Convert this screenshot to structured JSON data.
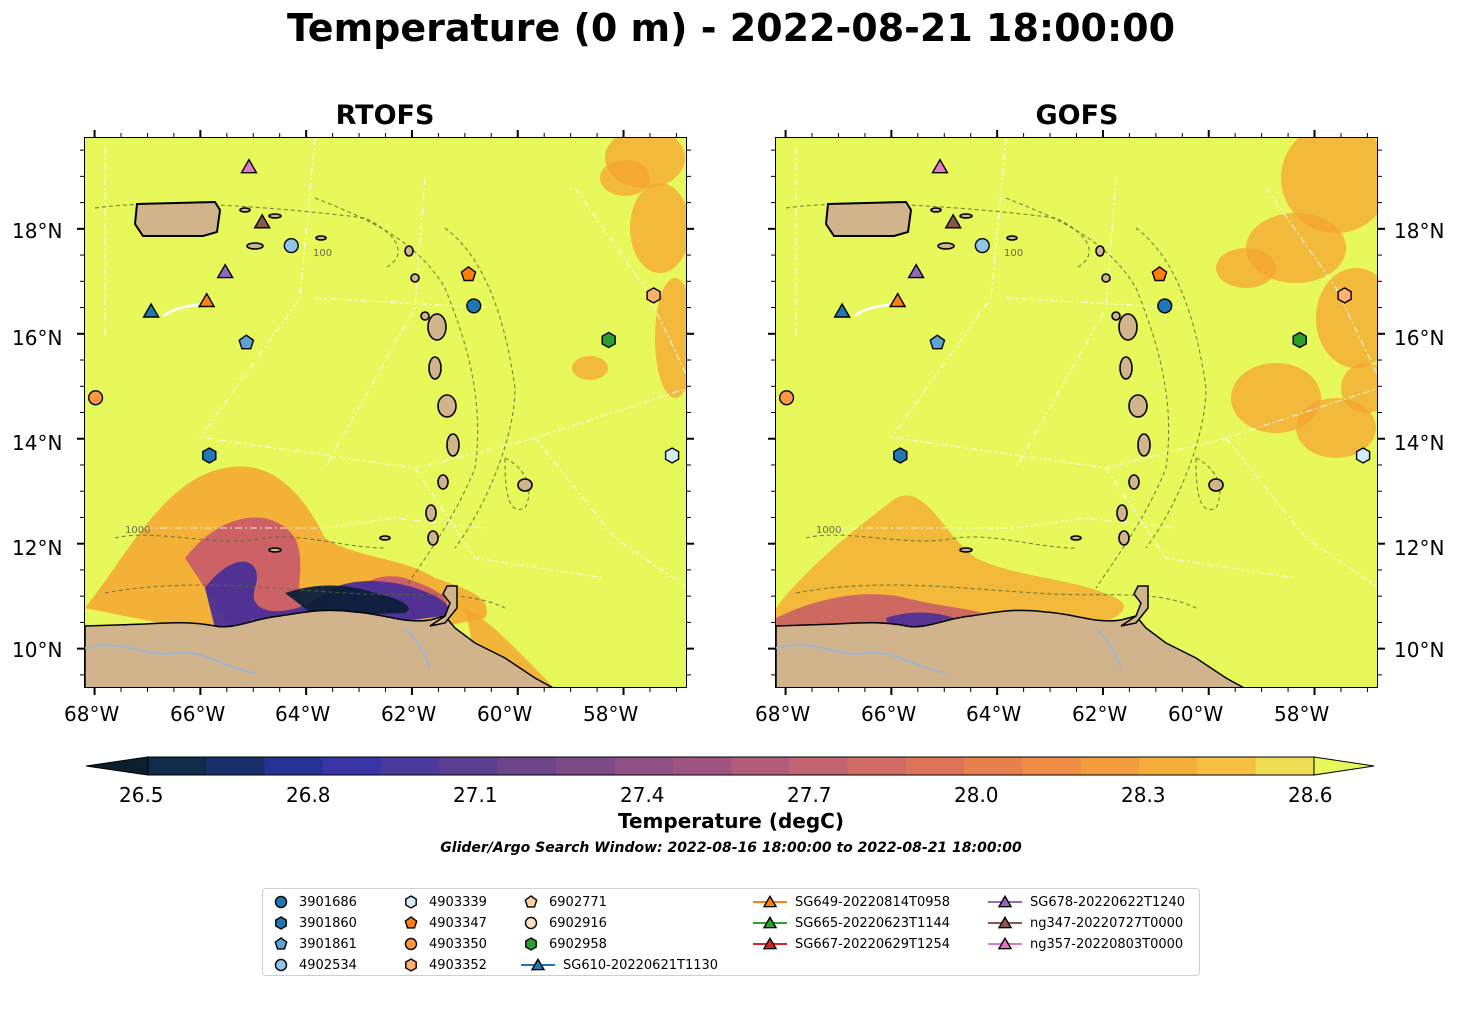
{
  "title": "Temperature (0 m) - 2022-08-21 18:00:00",
  "panels": [
    {
      "title": "RTOFS"
    },
    {
      "title": "GOFS"
    }
  ],
  "axes": {
    "lon_ticks": [
      "68°W",
      "66°W",
      "64°W",
      "62°W",
      "60°W",
      "58°W"
    ],
    "lat_ticks": [
      "18°N",
      "16°N",
      "14°N",
      "12°N",
      "10°N"
    ]
  },
  "bathymetry_labels": [
    "100",
    "1000"
  ],
  "colors": {
    "land": "#d2b48c",
    "warm_water": "#e6f85a",
    "orange": "#f5a431",
    "purple": "#4a2f97",
    "dark": "#0b1f3a",
    "contour": "#556b2f",
    "eez": "#ffffff"
  },
  "colorbar": {
    "ticks": [
      "26.5",
      "26.8",
      "27.1",
      "27.4",
      "27.7",
      "28.0",
      "28.3",
      "28.6"
    ],
    "label": "Temperature (degC)",
    "colormap": "thermal",
    "extend": "both"
  },
  "search_window": "Glider/Argo Search Window: 2022-08-16 18:00:00 to 2022-08-21 18:00:00",
  "legend": {
    "columns": [
      [
        {
          "label": "3901686",
          "marker": "circle",
          "color": "#1f77b4"
        },
        {
          "label": "3901860",
          "marker": "hexagon",
          "color": "#1f77b4"
        },
        {
          "label": "3901861",
          "marker": "pentagon",
          "color": "#5fa2d6"
        },
        {
          "label": "4902534",
          "marker": "circle",
          "color": "#8fc6ea"
        }
      ],
      [
        {
          "label": "4903339",
          "marker": "hexagon",
          "color": "#d6ecfa"
        },
        {
          "label": "4903347",
          "marker": "pentagon",
          "color": "#ff7f0e"
        },
        {
          "label": "4903350",
          "marker": "circle",
          "color": "#ff9640"
        },
        {
          "label": "4903352",
          "marker": "hexagon",
          "color": "#ffb070"
        }
      ],
      [
        {
          "label": "6902771",
          "marker": "pentagon",
          "color": "#ffcf9e"
        },
        {
          "label": "6902916",
          "marker": "circle",
          "color": "#ffe0c0"
        },
        {
          "label": "6902958",
          "marker": "hexagon",
          "color": "#2ca02c"
        },
        {
          "label": "SG610-20220621T1130",
          "marker": "triangle",
          "color": "#1f77b4",
          "line": true
        }
      ],
      [
        {
          "label": "SG649-20220814T0958",
          "marker": "triangle",
          "color": "#ff7f0e",
          "line": true
        },
        {
          "label": "SG665-20220623T1144",
          "marker": "triangle",
          "color": "#2ca02c",
          "line": true
        },
        {
          "label": "SG667-20220629T1254",
          "marker": "triangle",
          "color": "#d62728",
          "line": true
        }
      ],
      [
        {
          "label": "SG678-20220622T1240",
          "marker": "triangle",
          "color": "#9467bd",
          "line": true
        },
        {
          "label": "ng347-20220727T0000",
          "marker": "triangle",
          "color": "#8c564b",
          "line": true
        },
        {
          "label": "ng357-20220803T0000",
          "marker": "triangle",
          "color": "#e377c2",
          "line": true
        }
      ]
    ]
  },
  "platforms": [
    {
      "id": "3901686",
      "marker": "circle",
      "color": "#1f77b4",
      "lon": -60.85,
      "lat": 16.55
    },
    {
      "id": "3901860",
      "marker": "hexagon",
      "color": "#1f77b4",
      "lon": -65.85,
      "lat": 13.7
    },
    {
      "id": "3901861",
      "marker": "pentagon",
      "color": "#5fa2d6",
      "lon": -65.15,
      "lat": 15.85
    },
    {
      "id": "4902534",
      "marker": "circle",
      "color": "#8fc6ea",
      "lon": -64.3,
      "lat": 17.7
    },
    {
      "id": "4903339",
      "marker": "hexagon",
      "color": "#d6ecfa",
      "lon": -57.1,
      "lat": 13.7
    },
    {
      "id": "4903347",
      "marker": "pentagon",
      "color": "#ff7f0e",
      "lon": -60.95,
      "lat": 17.15
    },
    {
      "id": "4903350",
      "marker": "circle",
      "color": "#ff9640",
      "lon": -68.0,
      "lat": 14.8
    },
    {
      "id": "4903352",
      "marker": "hexagon",
      "color": "#ffb070",
      "lon": -57.45,
      "lat": 16.75
    },
    {
      "id": "6902958",
      "marker": "hexagon",
      "color": "#2ca02c",
      "lon": -58.3,
      "lat": 15.9
    },
    {
      "id": "SG610-20220621T1130",
      "marker": "triangle",
      "color": "#1f77b4",
      "lon": -66.95,
      "lat": 16.45
    },
    {
      "id": "SG649-20220814T0958",
      "marker": "triangle",
      "color": "#ff7f0e",
      "lon": -65.9,
      "lat": 16.65
    },
    {
      "id": "SG678-20220622T1240",
      "marker": "triangle",
      "color": "#9467bd",
      "lon": -65.55,
      "lat": 17.2
    },
    {
      "id": "ng347-20220727T0000",
      "marker": "triangle",
      "color": "#8c564b",
      "lon": -64.85,
      "lat": 18.15
    },
    {
      "id": "ng357-20220803T0000",
      "marker": "triangle",
      "color": "#e377c2",
      "lon": -65.1,
      "lat": 19.2
    }
  ],
  "extent": {
    "lon_min": -68.2,
    "lon_max": -56.8,
    "lat_min": 9.25,
    "lat_max": 19.75
  }
}
